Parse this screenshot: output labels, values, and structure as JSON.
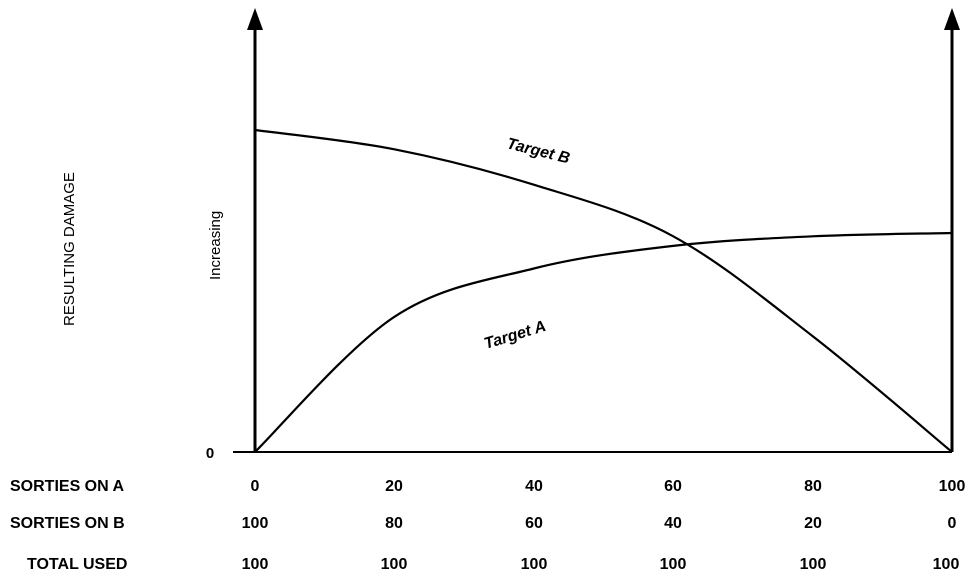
{
  "chart_data": {
    "type": "line",
    "ylabel": "RESULTING DAMAGE",
    "y_axis_note": "Increasing",
    "y_tick_zero": "0",
    "x_rows": [
      {
        "label": "SORTIES ON A",
        "ticks": [
          "0",
          "20",
          "40",
          "60",
          "80",
          "100"
        ]
      },
      {
        "label": "SORTIES ON B",
        "ticks": [
          "100",
          "80",
          "60",
          "40",
          "20",
          "0"
        ]
      },
      {
        "label": "TOTAL USED",
        "ticks": [
          "100",
          "100",
          "100",
          "100",
          "100",
          "100"
        ]
      }
    ],
    "x": [
      0,
      20,
      40,
      60,
      80,
      100
    ],
    "ylim": [
      0,
      100
    ],
    "series": [
      {
        "name": "Target A",
        "values": [
          0,
          42,
          57,
          64,
          67,
          68
        ]
      },
      {
        "name": "Target B",
        "values": [
          100,
          94,
          83,
          67,
          36,
          0
        ]
      }
    ],
    "grid": false,
    "legend": "inline"
  }
}
